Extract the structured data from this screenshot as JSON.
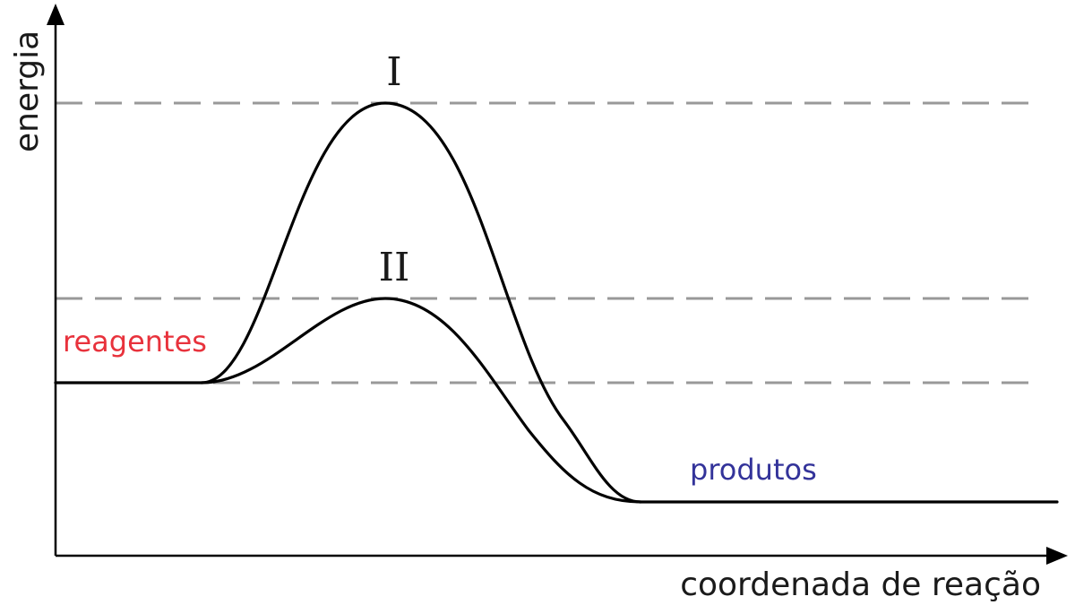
{
  "axes": {
    "y_label": "energia",
    "x_label": "coordenada de reação"
  },
  "curves": [
    {
      "label": "I"
    },
    {
      "label": "II"
    }
  ],
  "states": {
    "reactants": "reagentes",
    "products": "produtos"
  },
  "colors": {
    "reactants": "#e8323c",
    "products": "#33339a",
    "guides": "#999999",
    "curves": "#000000"
  }
}
